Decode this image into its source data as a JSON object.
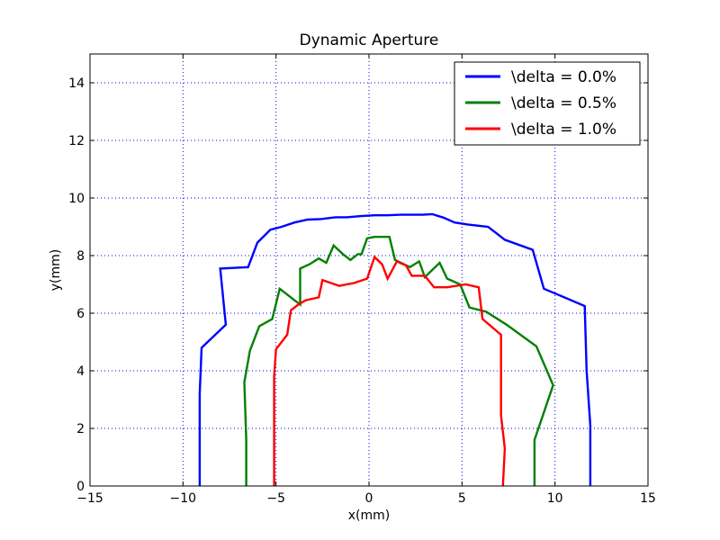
{
  "chart_data": {
    "type": "line",
    "title": "Dynamic Aperture",
    "xlabel": "x(mm)",
    "ylabel": "y(mm)",
    "xlim": [
      -15,
      15
    ],
    "ylim": [
      0,
      15
    ],
    "xticks": [
      -15,
      -10,
      -5,
      0,
      5,
      10,
      15
    ],
    "yticks": [
      0,
      2,
      4,
      6,
      8,
      10,
      12,
      14
    ],
    "grid": true,
    "legend_position": "top-right",
    "series": [
      {
        "name": "\\delta = 0.0%",
        "color": "#0000ff",
        "points": [
          [
            -9.1,
            0.0
          ],
          [
            -9.1,
            1.4
          ],
          [
            -9.1,
            3.2
          ],
          [
            -9.0,
            4.8
          ],
          [
            -7.7,
            5.6
          ],
          [
            -8.0,
            7.55
          ],
          [
            -6.5,
            7.6
          ],
          [
            -6.0,
            8.45
          ],
          [
            -5.3,
            8.9
          ],
          [
            -4.7,
            9.0
          ],
          [
            -4.0,
            9.15
          ],
          [
            -3.3,
            9.25
          ],
          [
            -2.6,
            9.27
          ],
          [
            -1.8,
            9.33
          ],
          [
            -1.2,
            9.33
          ],
          [
            -0.5,
            9.37
          ],
          [
            0.3,
            9.4
          ],
          [
            1.0,
            9.4
          ],
          [
            1.7,
            9.42
          ],
          [
            2.2,
            9.42
          ],
          [
            2.9,
            9.42
          ],
          [
            3.4,
            9.44
          ],
          [
            4.0,
            9.32
          ],
          [
            4.6,
            9.15
          ],
          [
            5.3,
            9.08
          ],
          [
            6.4,
            9.0
          ],
          [
            7.3,
            8.55
          ],
          [
            8.8,
            8.2
          ],
          [
            9.4,
            6.85
          ],
          [
            11.6,
            6.25
          ],
          [
            11.7,
            4.0
          ],
          [
            11.9,
            2.1
          ],
          [
            11.9,
            0.0
          ]
        ]
      },
      {
        "name": "\\delta = 0.5%",
        "color": "#008000",
        "points": [
          [
            -6.6,
            0.0
          ],
          [
            -6.6,
            1.6
          ],
          [
            -6.7,
            3.6
          ],
          [
            -6.4,
            4.7
          ],
          [
            -5.9,
            5.55
          ],
          [
            -5.2,
            5.8
          ],
          [
            -4.8,
            6.85
          ],
          [
            -3.7,
            6.3
          ],
          [
            -3.7,
            7.55
          ],
          [
            -3.2,
            7.7
          ],
          [
            -2.7,
            7.9
          ],
          [
            -2.3,
            7.75
          ],
          [
            -1.9,
            8.35
          ],
          [
            -1.4,
            8.05
          ],
          [
            -1.0,
            7.85
          ],
          [
            -0.6,
            8.05
          ],
          [
            -0.4,
            8.05
          ],
          [
            -0.1,
            8.6
          ],
          [
            0.3,
            8.65
          ],
          [
            1.1,
            8.65
          ],
          [
            1.4,
            7.85
          ],
          [
            2.2,
            7.6
          ],
          [
            2.7,
            7.8
          ],
          [
            3.0,
            7.25
          ],
          [
            3.8,
            7.75
          ],
          [
            4.2,
            7.2
          ],
          [
            4.9,
            7.0
          ],
          [
            5.4,
            6.2
          ],
          [
            6.3,
            6.05
          ],
          [
            7.4,
            5.6
          ],
          [
            9.0,
            4.85
          ],
          [
            9.9,
            3.5
          ],
          [
            8.9,
            1.6
          ],
          [
            8.9,
            0.0
          ]
        ]
      },
      {
        "name": "\\delta = 1.0%",
        "color": "#ff0000",
        "points": [
          [
            -5.1,
            0.0
          ],
          [
            -5.1,
            1.6
          ],
          [
            -5.1,
            3.8
          ],
          [
            -5.0,
            4.75
          ],
          [
            -4.4,
            5.25
          ],
          [
            -4.2,
            6.1
          ],
          [
            -3.8,
            6.3
          ],
          [
            -3.4,
            6.45
          ],
          [
            -2.7,
            6.55
          ],
          [
            -2.5,
            7.15
          ],
          [
            -1.6,
            6.95
          ],
          [
            -0.8,
            7.05
          ],
          [
            -0.1,
            7.2
          ],
          [
            0.3,
            7.95
          ],
          [
            0.7,
            7.7
          ],
          [
            1.0,
            7.2
          ],
          [
            1.5,
            7.8
          ],
          [
            2.0,
            7.65
          ],
          [
            2.3,
            7.3
          ],
          [
            3.0,
            7.3
          ],
          [
            3.5,
            6.9
          ],
          [
            4.2,
            6.9
          ],
          [
            5.2,
            7.0
          ],
          [
            5.9,
            6.9
          ],
          [
            6.1,
            5.8
          ],
          [
            7.1,
            5.25
          ],
          [
            7.1,
            3.8
          ],
          [
            7.1,
            2.45
          ],
          [
            7.3,
            1.3
          ],
          [
            7.2,
            0.0
          ]
        ]
      }
    ]
  }
}
